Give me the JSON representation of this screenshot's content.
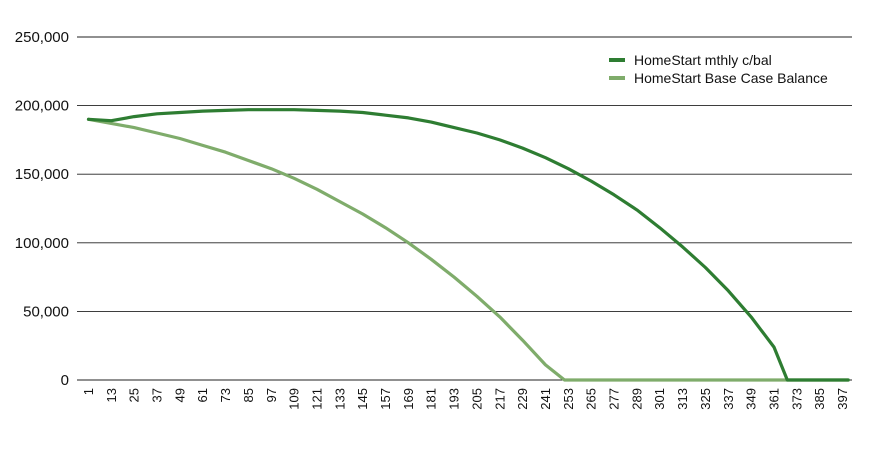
{
  "chart_data": {
    "type": "line",
    "title": "",
    "xlabel": "",
    "ylabel": "",
    "x_ticks": [
      1,
      13,
      25,
      37,
      49,
      61,
      73,
      85,
      97,
      109,
      121,
      133,
      145,
      157,
      169,
      181,
      193,
      205,
      217,
      229,
      241,
      253,
      265,
      277,
      289,
      301,
      313,
      325,
      337,
      349,
      361,
      373,
      385,
      397
    ],
    "x_tick_labels": [
      "1",
      "13",
      "25",
      "37",
      "49",
      "61",
      "73",
      "85",
      "97",
      "109",
      "121",
      "133",
      "145",
      "157",
      "169",
      "181",
      "193",
      "205",
      "217",
      "229",
      "241",
      "253",
      "265",
      "277",
      "289",
      "301",
      "313",
      "325",
      "337",
      "349",
      "361",
      "373",
      "385",
      "397"
    ],
    "xlim": [
      1,
      400
    ],
    "ylim": [
      0,
      250000
    ],
    "y_ticks": [
      0,
      50000,
      100000,
      150000,
      200000,
      250000
    ],
    "y_tick_labels": [
      "0",
      "50,000",
      "100,000",
      "150,000",
      "200,000",
      "250,000"
    ],
    "grid": true,
    "legend_position": "top-right",
    "series": [
      {
        "name": "HomeStart mthly c/bal",
        "color": "#2e7d32",
        "x": [
          1,
          13,
          25,
          37,
          49,
          61,
          73,
          85,
          97,
          109,
          121,
          133,
          145,
          157,
          169,
          181,
          193,
          205,
          217,
          229,
          241,
          253,
          265,
          277,
          289,
          301,
          313,
          325,
          337,
          349,
          361,
          368,
          373,
          385,
          397,
          400
        ],
        "y": [
          190000,
          189000,
          192000,
          194000,
          195000,
          196000,
          196500,
          197000,
          197000,
          197000,
          196500,
          196000,
          195000,
          193000,
          191000,
          188000,
          184000,
          180000,
          175000,
          169000,
          162000,
          154000,
          145000,
          135000,
          124000,
          111000,
          97000,
          82000,
          65000,
          46000,
          24000,
          0,
          0,
          0,
          0,
          0
        ]
      },
      {
        "name": "HomeStart Base Case Balance",
        "color": "#7fac6b",
        "x": [
          1,
          13,
          25,
          37,
          49,
          61,
          73,
          85,
          97,
          109,
          121,
          133,
          145,
          157,
          169,
          181,
          193,
          205,
          217,
          229,
          241,
          251,
          253,
          265,
          277,
          289,
          301,
          313,
          325,
          337,
          349,
          361,
          373,
          385,
          397,
          400
        ],
        "y": [
          190000,
          187000,
          184000,
          180000,
          176000,
          171000,
          166000,
          160000,
          154000,
          147000,
          139000,
          130000,
          121000,
          111000,
          100000,
          88000,
          75000,
          61000,
          46000,
          29000,
          11000,
          0,
          0,
          0,
          0,
          0,
          0,
          0,
          0,
          0,
          0,
          0,
          0,
          0,
          0,
          0
        ]
      }
    ]
  }
}
